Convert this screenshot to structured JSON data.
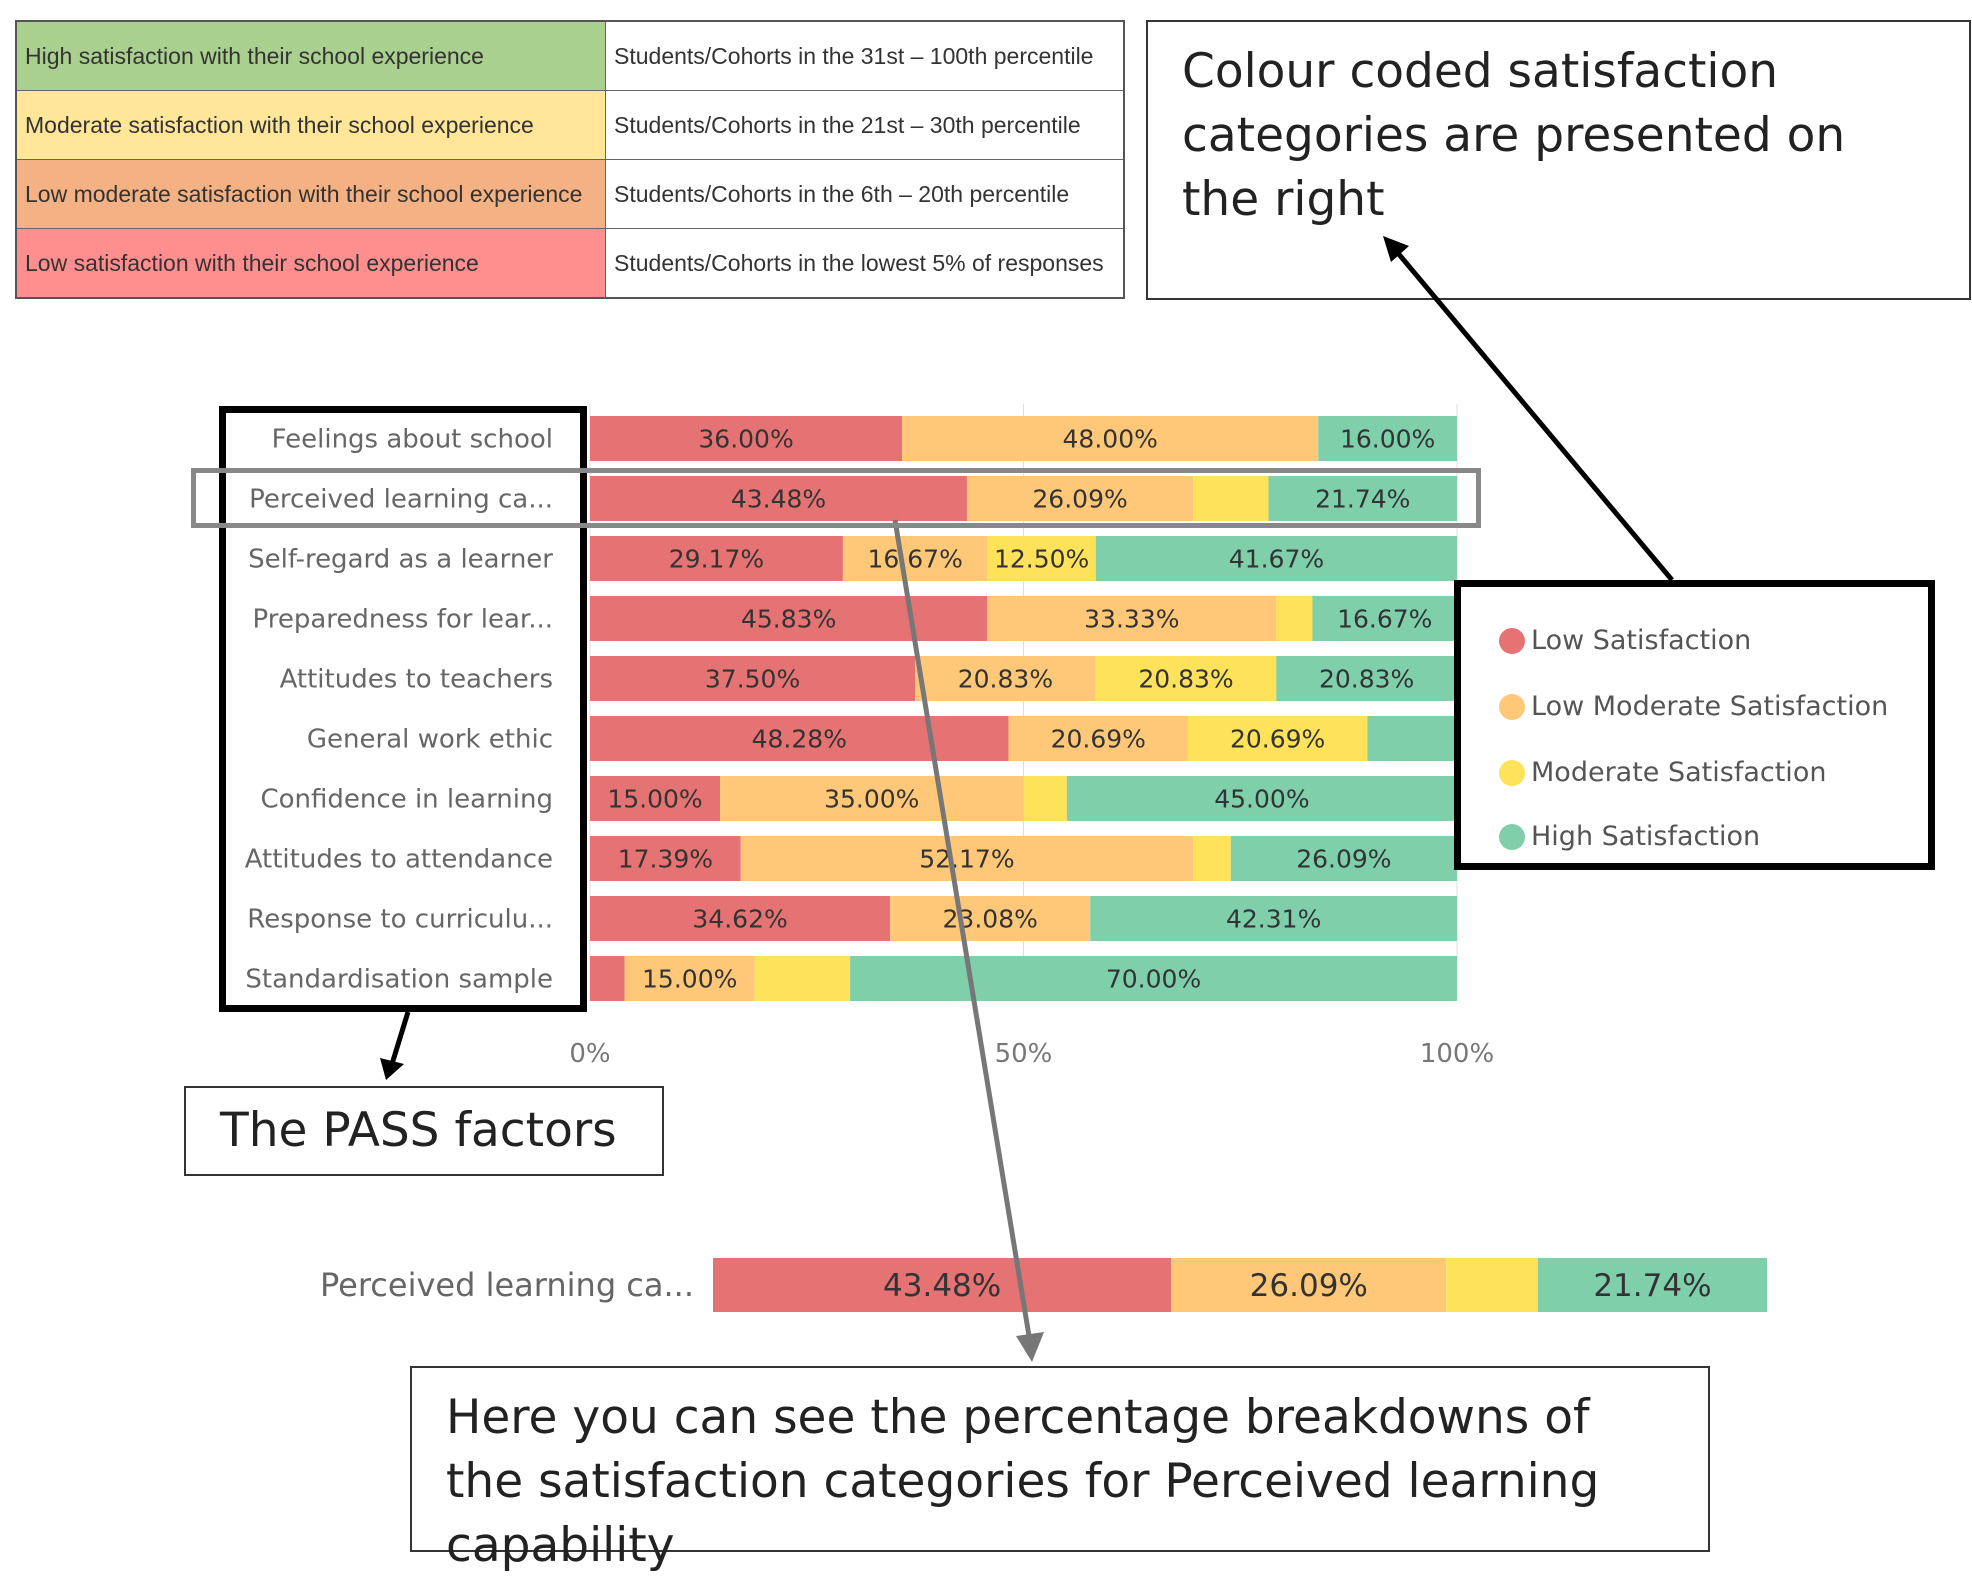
{
  "category_table": {
    "rows": [
      {
        "category": "High satisfaction with their school experience",
        "percentile": "Students/Cohorts in the 31st – 100th percentile",
        "color": "#a9d08e"
      },
      {
        "category": "Moderate satisfaction with their school experience",
        "percentile": "Students/Cohorts in the 21st – 30th percentile",
        "color": "#ffe699"
      },
      {
        "category": "Low moderate satisfaction with their school experience",
        "percentile": "Students/Cohorts in the 6th – 20th percentile",
        "color": "#f4b183"
      },
      {
        "category": "Low satisfaction with their school experience",
        "percentile": "Students/Cohorts in the lowest 5% of responses",
        "color": "#ff8f8f"
      }
    ]
  },
  "callouts": {
    "colour_coded": "Colour coded satisfaction categories are presented on the right",
    "pass_factors": "The PASS factors",
    "breakdown": "Here you can see the percentage breakdowns of the satisfaction categories for Perceived learning capability"
  },
  "legend": [
    {
      "label": "Low Satisfaction",
      "color": "#e57373"
    },
    {
      "label": "Low Moderate Satisfaction",
      "color": "#ffc878"
    },
    {
      "label": "Moderate Satisfaction",
      "color": "#fde25a"
    },
    {
      "label": "High Satisfaction",
      "color": "#7fcfab"
    }
  ],
  "chart_data": {
    "type": "bar",
    "orientation": "horizontal",
    "stacked": true,
    "normalized_percent": true,
    "x_ticks": [
      "0%",
      "50%",
      "100%"
    ],
    "xlim": [
      0,
      100
    ],
    "categories": [
      "Feelings about school",
      "Perceived learning ca...",
      "Self-regard as a learner",
      "Preparedness for lear...",
      "Attitudes to teachers",
      "General work ethic",
      "Confidence in learning",
      "Attitudes to attendance",
      "Response to curriculu...",
      "Standardisation sample"
    ],
    "series": [
      {
        "name": "Low Satisfaction",
        "color": "#e57373",
        "values": [
          36.0,
          43.48,
          29.17,
          45.83,
          37.5,
          48.28,
          15.0,
          17.39,
          34.62,
          4.0
        ],
        "labels": [
          "36.00%",
          "43.48%",
          "29.17%",
          "45.83%",
          "37.50%",
          "48.28%",
          "15.00%",
          "17.39%",
          "34.62%",
          ""
        ]
      },
      {
        "name": "Low Moderate Satisfaction",
        "color": "#ffc878",
        "values": [
          48.0,
          26.09,
          16.67,
          33.33,
          20.83,
          20.69,
          35.0,
          52.17,
          23.08,
          15.0
        ],
        "labels": [
          "48.00%",
          "26.09%",
          "16.67%",
          "33.33%",
          "20.83%",
          "20.69%",
          "35.00%",
          "52.17%",
          "23.08%",
          "15.00%"
        ]
      },
      {
        "name": "Moderate Satisfaction",
        "color": "#fde25a",
        "values": [
          0,
          8.69,
          12.5,
          4.17,
          20.83,
          20.69,
          5.0,
          4.35,
          0,
          11.0
        ],
        "labels": [
          "",
          "",
          "12.50%",
          "",
          "20.83%",
          "20.69%",
          "",
          "",
          "",
          ""
        ]
      },
      {
        "name": "High Satisfaction",
        "color": "#7fcfab",
        "values": [
          16.0,
          21.74,
          41.67,
          16.67,
          20.83,
          10.34,
          45.0,
          26.09,
          42.31,
          70.0
        ],
        "labels": [
          "16.00%",
          "21.74%",
          "41.67%",
          "16.67%",
          "20.83%",
          "",
          "45.00%",
          "26.09%",
          "42.31%",
          "70.00%"
        ]
      }
    ]
  },
  "zoom": {
    "category": "Perceived learning ca...",
    "values": [
      43.48,
      26.09,
      8.69,
      21.74
    ],
    "labels": [
      "43.48%",
      "26.09%",
      "",
      "21.74%"
    ]
  }
}
